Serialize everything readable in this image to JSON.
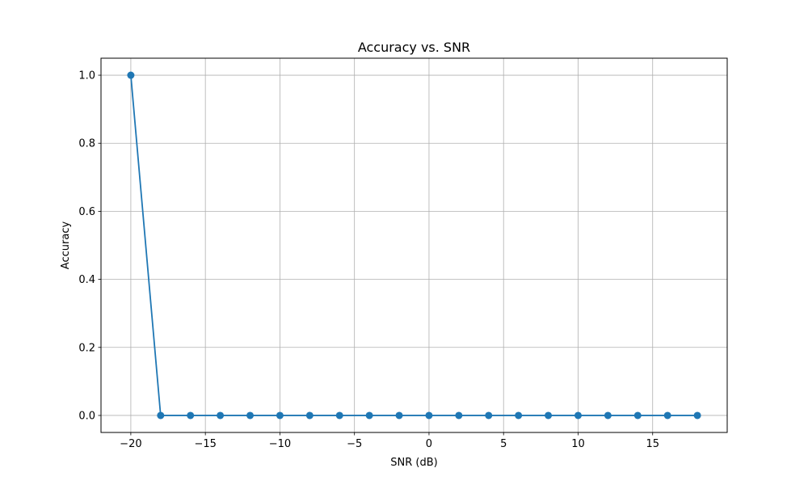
{
  "chart_data": {
    "type": "line",
    "title": "Accuracy vs. SNR",
    "xlabel": "SNR (dB)",
    "ylabel": "Accuracy",
    "xlim": [
      -22,
      20
    ],
    "ylim": [
      -0.05,
      1.05
    ],
    "xticks": [
      -20,
      -15,
      -10,
      -5,
      0,
      5,
      10,
      15
    ],
    "xtick_labels": [
      "−20",
      "−15",
      "−10",
      "−5",
      "0",
      "5",
      "10",
      "15"
    ],
    "yticks": [
      0.0,
      0.2,
      0.4,
      0.6,
      0.8,
      1.0
    ],
    "ytick_labels": [
      "0.0",
      "0.2",
      "0.4",
      "0.6",
      "0.8",
      "1.0"
    ],
    "grid": true,
    "series": [
      {
        "color": "#1f77b4",
        "marker": "circle",
        "x": [
          -20,
          -18,
          -16,
          -14,
          -12,
          -10,
          -8,
          -6,
          -4,
          -2,
          0,
          2,
          4,
          6,
          8,
          10,
          12,
          14,
          16,
          18
        ],
        "y": [
          1.0,
          0.0,
          0.0,
          0.0,
          0.0,
          0.0,
          0.0,
          0.0,
          0.0,
          0.0,
          0.0,
          0.0,
          0.0,
          0.0,
          0.0,
          0.0,
          0.0,
          0.0,
          0.0,
          0.0
        ]
      }
    ]
  }
}
